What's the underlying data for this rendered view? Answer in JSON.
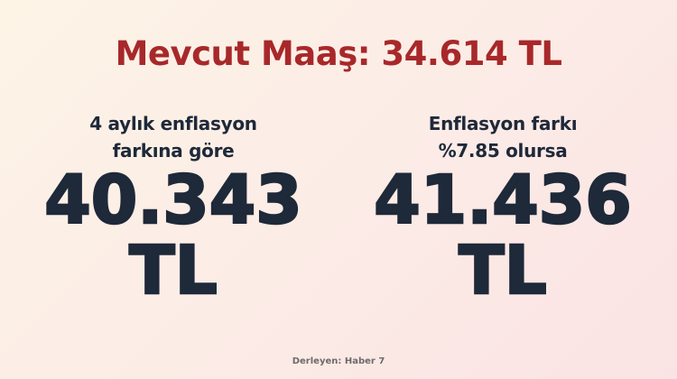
{
  "title": "Mevcut Maaş: 34.614 TL",
  "left": {
    "subtitle_line1": "4 aylık enflasyon",
    "subtitle_line2": "farkına göre",
    "amount": "40.343",
    "currency": "TL"
  },
  "right": {
    "subtitle_line1": "Enflasyon farkı",
    "subtitle_line2": "%7.85 olursa",
    "amount": "41.436",
    "currency": "TL"
  },
  "footer": "Derleyen: Haber 7",
  "colors": {
    "title": "#a8282a",
    "text": "#1e2939",
    "footer": "#6e6a6a"
  }
}
